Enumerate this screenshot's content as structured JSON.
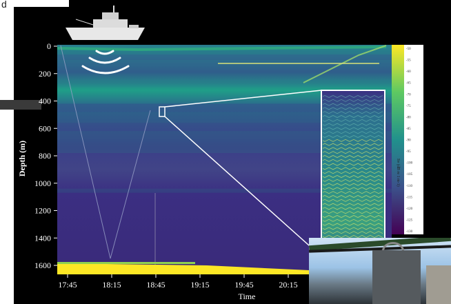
{
  "corner_letter": "d",
  "chart_data": {
    "type": "heatmap",
    "title": "",
    "xlabel": "Time",
    "ylabel": "Depth (m)",
    "x_ticks": [
      "17:45",
      "18:15",
      "18:45",
      "19:15",
      "19:45",
      "20:15"
    ],
    "y_ticks": [
      0,
      200,
      400,
      600,
      800,
      1000,
      1200,
      1400,
      1600
    ],
    "ylim": [
      0,
      1650
    ],
    "y_inverted": true,
    "colormap": "viridis",
    "colors": {
      "background": "#3b2f82",
      "scatter_layer": "#1f9e89",
      "bottom": "#fde725",
      "annotation_line": "#d8e27a"
    },
    "layers": [
      {
        "depth_top": 0,
        "depth_bottom": 60,
        "intensity": 0.5
      },
      {
        "depth_top": 100,
        "depth_bottom": 260,
        "intensity": 0.35
      },
      {
        "depth_top": 300,
        "depth_bottom": 420,
        "intensity": 0.55
      },
      {
        "depth_top": 480,
        "depth_bottom": 560,
        "intensity": 0.25
      },
      {
        "depth_top": 620,
        "depth_bottom": 780,
        "intensity": 0.3
      },
      {
        "depth_top": 1040,
        "depth_bottom": 1070,
        "intensity": 0.3
      },
      {
        "depth_top": 1590,
        "depth_bottom": 1650,
        "intensity": 1.0
      }
    ],
    "colorbar_labels": [
      "-50",
      "-55",
      "-60",
      "-65",
      "-70",
      "-75",
      "-80",
      "-85",
      "-90",
      "-95",
      "-100",
      "-105",
      "-110",
      "-115",
      "-120",
      "-125",
      "-130"
    ],
    "colorbar_title": "Sv (dB re 1 m-1)"
  }
}
